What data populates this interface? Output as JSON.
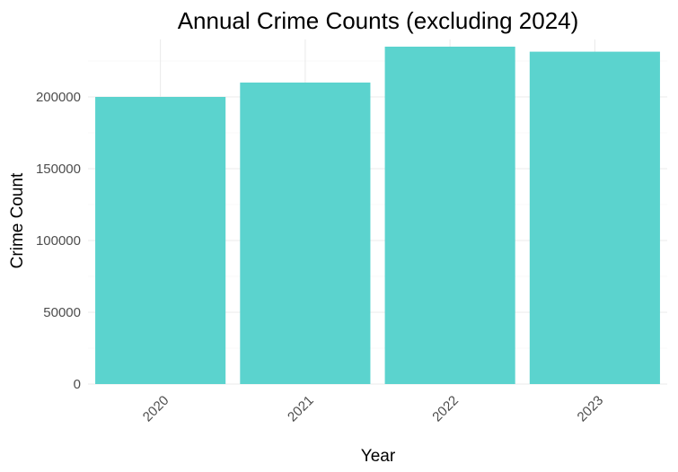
{
  "chart_data": {
    "type": "bar",
    "title": "Annual Crime Counts (excluding 2024)",
    "xlabel": "Year",
    "ylabel": "Crime Count",
    "categories": [
      "2020",
      "2021",
      "2022",
      "2023"
    ],
    "values": [
      200000,
      210000,
      235000,
      231500
    ],
    "ylim": [
      0,
      240000
    ],
    "yticks": [
      0,
      50000,
      100000,
      150000,
      200000
    ],
    "ytick_labels": [
      "0",
      "50000",
      "100000",
      "150000",
      "200000"
    ],
    "bar_color": "#5BD3CE",
    "grid": true,
    "legend": "none"
  }
}
